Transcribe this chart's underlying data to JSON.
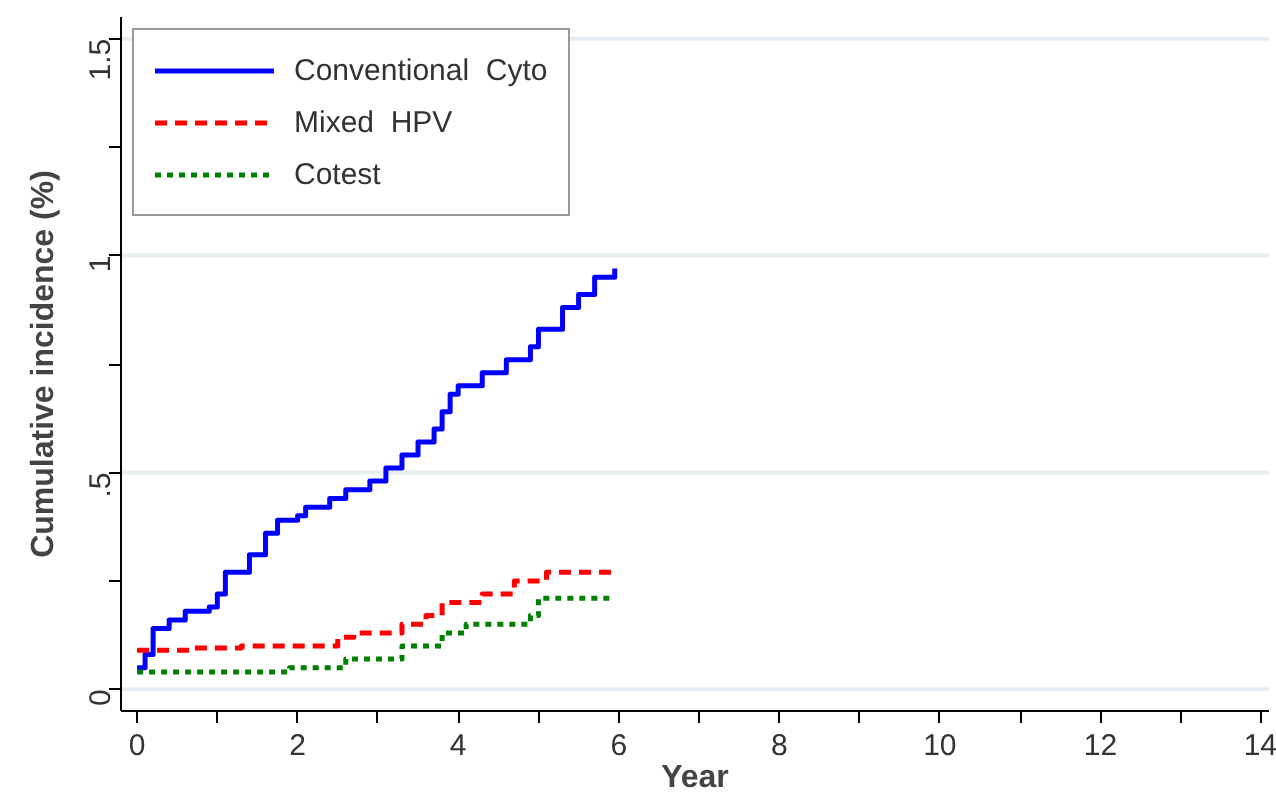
{
  "chart_data": {
    "type": "step",
    "xlabel": "Year",
    "ylabel": "Cumulative incidence (%)",
    "xlim": [
      -0.2,
      14.1
    ],
    "ylim": [
      -0.05,
      1.55
    ],
    "xticks": [
      0,
      {
        "value": 1,
        "label": null
      },
      2,
      {
        "value": 3,
        "label": null
      },
      4,
      {
        "value": 5,
        "label": null
      },
      6,
      {
        "value": 7,
        "label": null
      },
      8,
      {
        "value": 9,
        "label": null
      },
      10,
      {
        "value": 11,
        "label": null
      },
      12,
      {
        "value": 13,
        "label": null
      },
      14
    ],
    "yticks": [
      0,
      {
        "value": 0.25,
        "label": null
      },
      {
        "value": 0.5,
        "label": ".5"
      },
      {
        "value": 0.75,
        "label": null
      },
      1,
      {
        "value": 1.25,
        "label": null
      },
      1.5
    ],
    "grid": "y",
    "legend": "top left",
    "series": [
      {
        "name": "Conventional  Cyto",
        "color": "#0000ff",
        "line_style": "solid",
        "x": [
          0,
          0.1,
          0.2,
          0.4,
          0.6,
          0.9,
          1.0,
          1.1,
          1.4,
          1.6,
          1.75,
          2.0,
          2.1,
          2.4,
          2.6,
          2.9,
          3.1,
          3.3,
          3.5,
          3.7,
          3.8,
          3.9,
          4.0,
          4.3,
          4.6,
          4.9,
          5.0,
          5.3,
          5.5,
          5.7,
          5.95
        ],
        "values": [
          0.05,
          0.08,
          0.14,
          0.16,
          0.18,
          0.19,
          0.22,
          0.27,
          0.31,
          0.36,
          0.39,
          0.4,
          0.42,
          0.44,
          0.46,
          0.48,
          0.51,
          0.54,
          0.57,
          0.6,
          0.64,
          0.68,
          0.7,
          0.73,
          0.76,
          0.79,
          0.83,
          0.88,
          0.91,
          0.95,
          0.97
        ]
      },
      {
        "name": "Mixed  HPV",
        "color": "#ff0000",
        "line_style": "dashed",
        "x": [
          0,
          0.7,
          1.3,
          2.5,
          2.7,
          3.3,
          3.6,
          3.8,
          4.3,
          4.7,
          5.1,
          5.95
        ],
        "values": [
          0.09,
          0.095,
          0.1,
          0.12,
          0.13,
          0.15,
          0.17,
          0.2,
          0.22,
          0.25,
          0.27,
          0.27
        ]
      },
      {
        "name": "Cotest",
        "color": "#008000",
        "line_style": "dotted",
        "x": [
          0,
          1.9,
          2.6,
          3.3,
          3.8,
          4.1,
          4.9,
          5.0,
          5.95
        ],
        "values": [
          0.04,
          0.05,
          0.07,
          0.1,
          0.13,
          0.15,
          0.17,
          0.21,
          0.21
        ]
      }
    ]
  }
}
